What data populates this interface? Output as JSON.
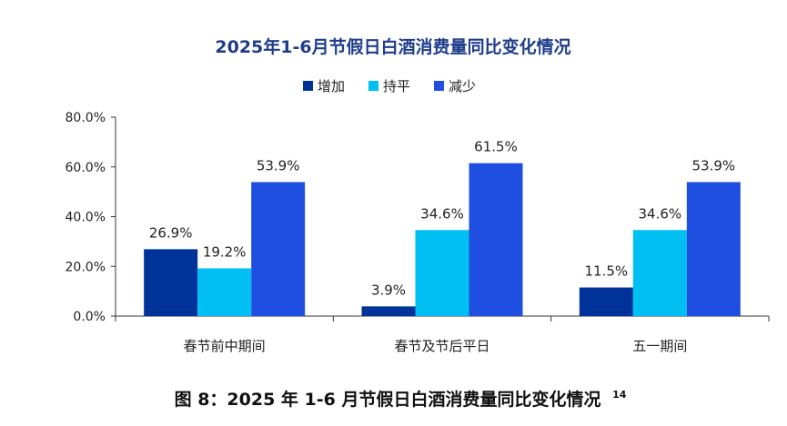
{
  "chart_data": {
    "type": "bar",
    "title": "2025年1-6月节假日白酒消费量同比变化情况",
    "categories": [
      "春节前中期间",
      "春节及节后平日",
      "五一期间"
    ],
    "series": [
      {
        "name": "增加",
        "values": [
          26.9,
          3.9,
          11.5
        ],
        "color": "#003399"
      },
      {
        "name": "持平",
        "values": [
          19.2,
          34.6,
          34.6
        ],
        "color": "#00BFF3"
      },
      {
        "name": "减少",
        "values": [
          53.9,
          61.5,
          53.9
        ],
        "color": "#1F4FE0"
      }
    ],
    "data_labels": [
      [
        "26.9%",
        "19.2%",
        "53.9%"
      ],
      [
        "3.9%",
        "34.6%",
        "61.5%"
      ],
      [
        "11.5%",
        "34.6%",
        "53.9%"
      ]
    ],
    "ylim": [
      0,
      80
    ],
    "yticks": [
      "0.0%",
      "20.0%",
      "40.0%",
      "60.0%",
      "80.0%"
    ],
    "legend_position": "top",
    "grid": false
  },
  "caption": {
    "main": "图 8：2025 年 1-6 月节假日白酒消费量同比变化情况",
    "superscript": "14"
  },
  "colors": {
    "title": "#1F3D8A",
    "axis": "#333333",
    "text": "#222222"
  }
}
